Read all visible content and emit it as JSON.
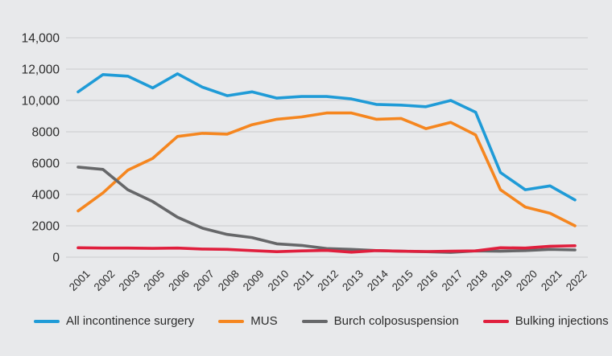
{
  "chart_data": {
    "type": "line",
    "title": "",
    "xlabel": "",
    "ylabel": "",
    "ylim": [
      0,
      14000
    ],
    "yticks": [
      0,
      2000,
      4000,
      6000,
      8000,
      10000,
      12000,
      14000
    ],
    "ytick_labels": [
      "0",
      "2000",
      "4000",
      "6000",
      "8000",
      "10,000",
      "12,000",
      "14,000"
    ],
    "grid": true,
    "legend_position": "bottom",
    "x": [
      "2001",
      "2002",
      "2003",
      "2005",
      "2006",
      "2007",
      "2008",
      "2009",
      "2010",
      "2011",
      "2012",
      "2013",
      "2014",
      "2015",
      "2016",
      "2017",
      "2018",
      "2019",
      "2020",
      "2021",
      "2022"
    ],
    "series": [
      {
        "name": "All incontinence surgery",
        "color": "#1f9bd7",
        "values": [
          10550,
          11650,
          11550,
          10800,
          11700,
          10850,
          10300,
          10550,
          10150,
          10250,
          10250,
          10100,
          9750,
          9700,
          9600,
          10000,
          9250,
          5400,
          4300,
          4550,
          3650
        ]
      },
      {
        "name": "MUS",
        "color": "#f5861f",
        "values": [
          2950,
          4100,
          5550,
          6300,
          7700,
          7900,
          7850,
          8450,
          8800,
          8950,
          9200,
          9200,
          8800,
          8850,
          8200,
          8600,
          7800,
          4300,
          3200,
          2800,
          2000
        ]
      },
      {
        "name": "Burch colposuspension",
        "color": "#666769",
        "values": [
          5750,
          5600,
          4300,
          3550,
          2550,
          1850,
          1450,
          1250,
          850,
          750,
          550,
          500,
          420,
          380,
          350,
          300,
          400,
          380,
          420,
          500,
          460
        ]
      },
      {
        "name": "Bulking injections",
        "color": "#e01f3d",
        "values": [
          600,
          580,
          580,
          560,
          580,
          520,
          500,
          420,
          350,
          400,
          430,
          320,
          420,
          380,
          360,
          380,
          400,
          600,
          580,
          700,
          730
        ]
      }
    ]
  },
  "legend": {
    "items": [
      {
        "label": "All incontinence surgery",
        "color": "#1f9bd7"
      },
      {
        "label": "MUS",
        "color": "#f5861f"
      },
      {
        "label": "Burch colposuspension",
        "color": "#666769"
      },
      {
        "label": "Bulking injections",
        "color": "#e01f3d"
      }
    ]
  }
}
